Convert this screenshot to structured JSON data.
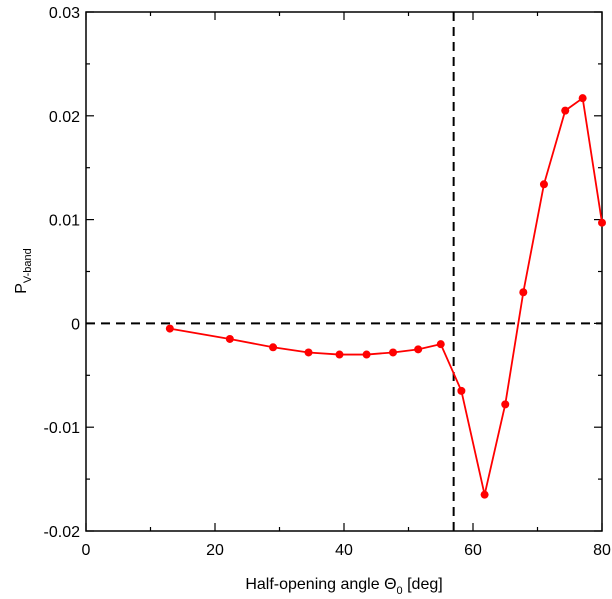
{
  "chart_data": {
    "type": "line",
    "xlabel_main": "Half-opening angle Θ",
    "xlabel_sub": "0",
    "xlabel_unit": " [deg]",
    "ylabel_main": "P",
    "ylabel_sub": "V-band",
    "xlim": [
      0,
      80
    ],
    "ylim": [
      -0.02,
      0.03
    ],
    "x_ticks": [
      0,
      20,
      40,
      60,
      80
    ],
    "y_ticks": [
      -0.02,
      -0.01,
      0,
      0.01,
      0.02,
      0.03
    ],
    "x_tick_labels": [
      "0",
      "20",
      "40",
      "60",
      "80"
    ],
    "y_tick_labels": [
      "-0.02",
      "-0.01",
      "0",
      "0.01",
      "0.02",
      "0.03"
    ],
    "grid": false,
    "reference_lines": {
      "horizontal_y": 0,
      "vertical_x": 57
    },
    "series": [
      {
        "color": "#ff0000",
        "x": [
          13,
          22.3,
          29,
          34.5,
          39.3,
          43.5,
          47.6,
          51.5,
          55,
          58.2,
          61.8,
          65,
          67.8,
          71,
          74.3,
          77,
          80
        ],
        "y": [
          -0.0005,
          -0.0015,
          -0.0023,
          -0.0028,
          -0.003,
          -0.003,
          -0.0028,
          -0.0025,
          -0.002,
          -0.0065,
          -0.0165,
          -0.0078,
          0.003,
          0.0134,
          0.0205,
          0.0217,
          0.0097
        ]
      }
    ]
  }
}
